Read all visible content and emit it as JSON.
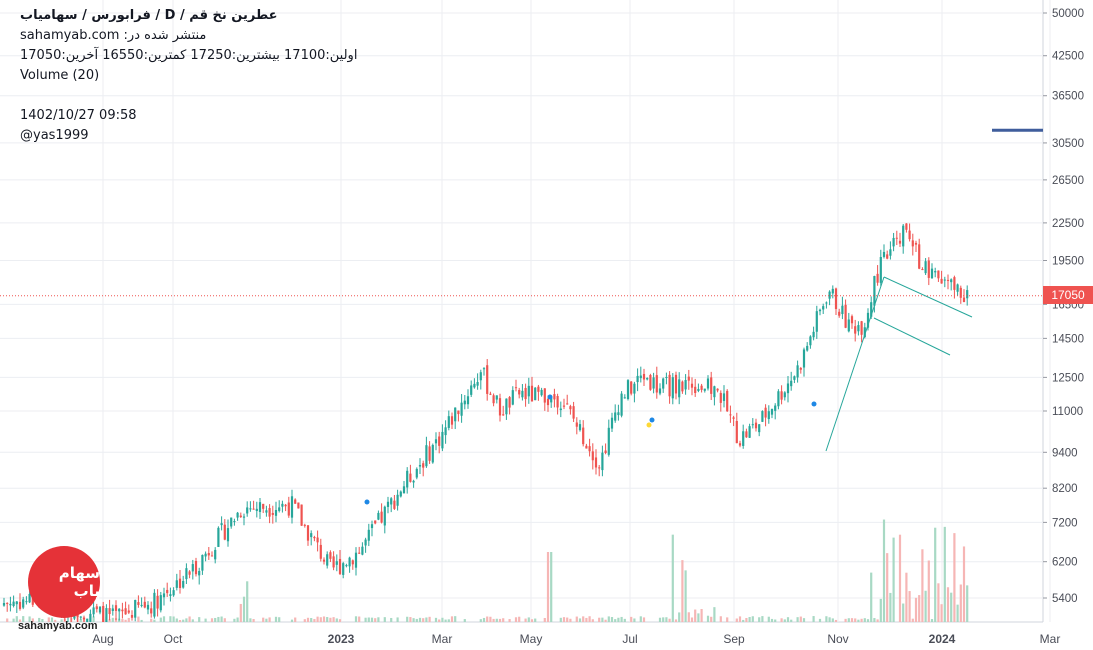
{
  "legend": {
    "title": "عطرین نخ قم / D / فرابورس / سهامیاب",
    "published": "منتشر شده در: sahamyab.com",
    "ohlc": "اولین:17100 بیشترین:17250 کمترین:16550 آخرین:17050",
    "volume": "Volume (20)",
    "datetime": "1402/10/27 09:58",
    "user": "@yas1999"
  },
  "logo": {
    "text": "سهام یاب",
    "site": "sahamyab.com"
  },
  "price_tag": "17050",
  "colors": {
    "up": "#26a69a",
    "down": "#ef5350",
    "volume_up": "#a8d9c4",
    "volume_down": "#f6b6b5",
    "trendline": "#26a69a",
    "hline": "#3f5d9c",
    "grid": "#eceef2"
  },
  "chart_data": {
    "type": "candlestick",
    "y_axis": {
      "scale": "log",
      "position": "right",
      "ticks": [
        5400,
        6200,
        7200,
        8200,
        9400,
        11000,
        12500,
        14500,
        16500,
        19500,
        22500,
        26500,
        30500,
        36500,
        42500,
        50000
      ]
    },
    "x_axis": {
      "ticks": [
        "Aug",
        "Oct",
        "2023",
        "Mar",
        "May",
        "Jul",
        "Sep",
        "Nov",
        "2024",
        "Mar"
      ]
    },
    "last_price": 17050,
    "price_path": [
      [
        "Aug",
        5300
      ],
      [
        "Sep",
        5400
      ],
      [
        "Oct",
        5000
      ],
      [
        "Nov",
        5300
      ],
      [
        "Dec",
        6000
      ],
      [
        "2023",
        7600
      ],
      [
        "Jan",
        7700
      ],
      [
        "Feb",
        6000
      ],
      [
        "Mar",
        6500
      ],
      [
        "Apr",
        8200
      ],
      [
        "Apr",
        10000
      ],
      [
        "May",
        12800
      ],
      [
        "May",
        11000
      ],
      [
        "Jun",
        11800
      ],
      [
        "Jun",
        11500
      ],
      [
        "Jul",
        11600
      ],
      [
        "Jul",
        9000
      ],
      [
        "Aug",
        11600
      ],
      [
        "Aug",
        12600
      ],
      [
        "Sep",
        12000
      ],
      [
        "Sep",
        12300
      ],
      [
        "Oct",
        11800
      ],
      [
        "Oct",
        9900
      ],
      [
        "Nov",
        10500
      ],
      [
        "Nov",
        13000
      ],
      [
        "Dec",
        17500
      ],
      [
        "Dec",
        15200
      ],
      [
        "Dec",
        15300
      ],
      [
        "Jan",
        18800
      ],
      [
        "2024",
        21800
      ],
      [
        "Jan",
        18500
      ],
      [
        "Jan",
        17050
      ]
    ],
    "horizontal_line": 32000,
    "trendlines": [
      {
        "from": [
          "Nov",
          9400
        ],
        "to": [
          "Dec",
          17800
        ]
      },
      {
        "from": [
          "Dec",
          17800
        ],
        "to": [
          "Jan",
          15800
        ]
      },
      {
        "from": [
          "Dec",
          15500
        ],
        "to": [
          "Jan",
          13700
        ]
      }
    ]
  }
}
